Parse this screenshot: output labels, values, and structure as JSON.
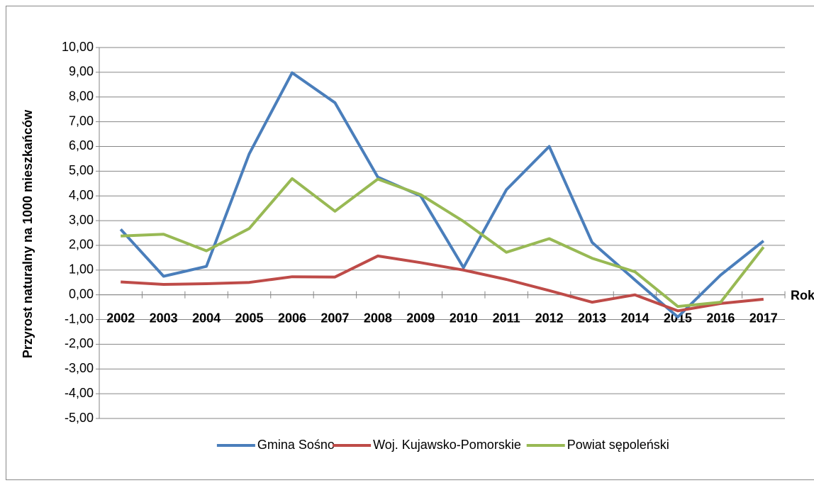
{
  "chart_data": {
    "type": "line",
    "y_label": "Przyrost naturalny na 1000 mieszkańców",
    "x_label": "Rok",
    "categories": [
      "2002",
      "2003",
      "2004",
      "2005",
      "2006",
      "2007",
      "2008",
      "2009",
      "2010",
      "2011",
      "2012",
      "2013",
      "2014",
      "2015",
      "2016",
      "2017"
    ],
    "series": [
      {
        "name": "Gmina Sośno",
        "color": "#4a7ebb",
        "values": [
          2.65,
          0.75,
          1.15,
          5.7,
          8.98,
          7.77,
          4.76,
          4.0,
          1.1,
          4.25,
          6.0,
          2.12,
          0.6,
          -0.9,
          0.8,
          2.18
        ]
      },
      {
        "name": "Woj. Kujawsko-Pomorskie",
        "color": "#be4b48",
        "values": [
          0.52,
          0.42,
          0.45,
          0.5,
          0.73,
          0.72,
          1.57,
          1.3,
          1.0,
          0.62,
          0.17,
          -0.3,
          0.0,
          -0.65,
          -0.35,
          -0.18
        ]
      },
      {
        "name": "Powiat sępoleński",
        "color": "#98b954",
        "values": [
          2.38,
          2.45,
          1.78,
          2.68,
          4.7,
          3.38,
          4.68,
          4.05,
          2.97,
          1.72,
          2.27,
          1.48,
          0.93,
          -0.47,
          -0.3,
          1.93
        ]
      }
    ],
    "ylim": [
      -5,
      10
    ],
    "yticks": [
      {
        "value": -5,
        "label": "-5,00"
      },
      {
        "value": -4,
        "label": "-4,00"
      },
      {
        "value": -3,
        "label": "-3,00"
      },
      {
        "value": -2,
        "label": "-2,00"
      },
      {
        "value": -1,
        "label": "-1,00"
      },
      {
        "value": 0,
        "label": "0,00"
      },
      {
        "value": 1,
        "label": "1,00"
      },
      {
        "value": 2,
        "label": "2,00"
      },
      {
        "value": 3,
        "label": "3,00"
      },
      {
        "value": 4,
        "label": "4,00"
      },
      {
        "value": 5,
        "label": "5,00"
      },
      {
        "value": 6,
        "label": "6,00"
      },
      {
        "value": 7,
        "label": "7,00"
      },
      {
        "value": 8,
        "label": "8,00"
      },
      {
        "value": 9,
        "label": "9,00"
      },
      {
        "value": 10,
        "label": "10,00"
      }
    ],
    "grid": true,
    "legend": "bottom"
  }
}
